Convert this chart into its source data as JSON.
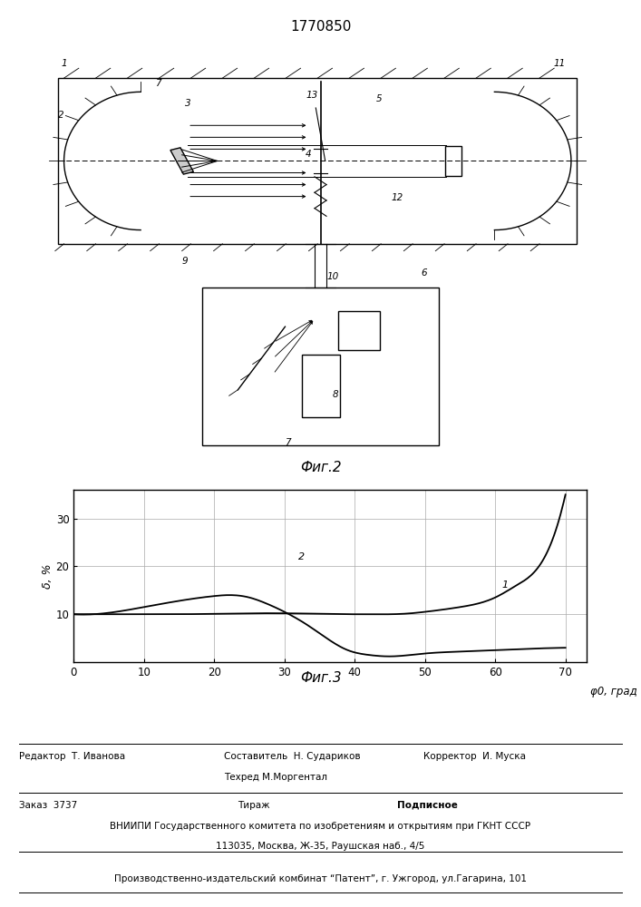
{
  "patent_number": "1770850",
  "graph": {
    "ylabel": "δ, %",
    "xlabel": "φ0, град",
    "xticks": [
      0,
      10,
      20,
      30,
      40,
      50,
      60,
      70
    ],
    "yticks": [
      10,
      20,
      30
    ],
    "xlim": [
      0,
      73
    ],
    "ylim": [
      0,
      36
    ],
    "curve1_x": [
      0,
      5,
      10,
      15,
      20,
      25,
      30,
      35,
      40,
      42,
      45,
      48,
      50,
      55,
      60,
      63,
      65,
      68,
      70
    ],
    "curve1_y": [
      10.0,
      10.0,
      10.0,
      10.0,
      10.1,
      10.2,
      10.2,
      10.1,
      10.0,
      10.0,
      10.0,
      10.2,
      10.5,
      11.5,
      13.5,
      16.0,
      18.0,
      25.0,
      35.0
    ],
    "curve2_x": [
      0,
      5,
      10,
      15,
      20,
      22,
      25,
      27,
      30,
      33,
      36,
      39,
      42,
      45,
      48,
      50,
      55,
      60,
      65,
      70
    ],
    "curve2_y": [
      10.0,
      10.3,
      11.5,
      12.8,
      13.8,
      14.0,
      13.5,
      12.5,
      10.5,
      8.0,
      5.0,
      2.5,
      1.5,
      1.2,
      1.5,
      1.8,
      2.2,
      2.5,
      2.8,
      3.0
    ],
    "line_color": "#000000",
    "grid_color": "#999999"
  },
  "footer": {
    "editor": "Редактор  Т. Иванова",
    "composer": "Составитель  Н. Судариков",
    "techred": "Техред М.Моргентал",
    "corrector": "Корректор  И. Муска",
    "order": "Заказ  3737",
    "tirazh": "Тираж",
    "podpisnoe": "Подписное",
    "vniiipi": "ВНИИПИ Государственного комитета по изобретениям и открытиям при ГКНТ СССР",
    "address": "113035, Москва, Ж-35, Раушская наб., 4/5",
    "proizv": "Производственно-издательский комбинат “Патент”, г. Ужгород, ул.Гагарина, 101"
  }
}
